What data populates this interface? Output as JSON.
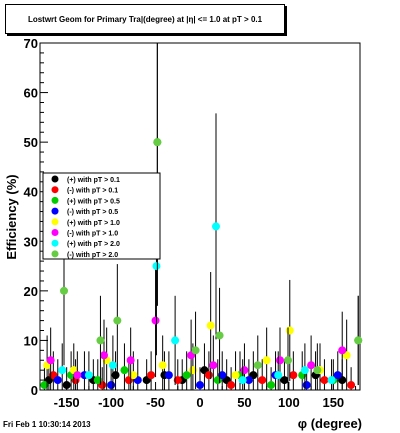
{
  "title": "Lostwrt Geom for Primary Tra|(degree) at |η| <= 1.0 at pT > 0.1",
  "timestamp": "Fri Feb  1 10:30:14 2013",
  "colors": {
    "p01": "#000000",
    "m01": "#ff0000",
    "p05": "#00cc00",
    "m05": "#0000ff",
    "p10": "#ffff00",
    "m10": "#ff00ff",
    "p20": "#00ffff",
    "m20": "#66cc44"
  },
  "chart_data": {
    "type": "scatter",
    "title": "Lostwrt Geom for Primary Tra|(degree) at |η| <= 1.0 at pT > 0.1",
    "xlabel": "φ (degree)",
    "ylabel": "Efficiency (%)",
    "xlim": [
      -180,
      180
    ],
    "ylim": [
      0,
      70
    ],
    "x_ticks": [
      -150,
      -100,
      -50,
      0,
      50,
      100,
      150
    ],
    "x_tick_labels": [
      "-150",
      "-100",
      "-50",
      "0",
      "50",
      "100",
      "150"
    ],
    "y_ticks": [
      0,
      10,
      20,
      30,
      40,
      50,
      60,
      70
    ],
    "y_tick_labels": [
      "0",
      "10",
      "20",
      "30",
      "40",
      "50",
      "60",
      "70"
    ],
    "legend_position": "left-middle",
    "series": [
      {
        "name": "(+) with pT > 0.1",
        "color": "#000000",
        "points": [
          [
            -170,
            2
          ],
          [
            -150,
            1
          ],
          [
            -120,
            2
          ],
          [
            -95,
            3
          ],
          [
            -60,
            2
          ],
          [
            -40,
            3
          ],
          [
            -20,
            2
          ],
          [
            5,
            4
          ],
          [
            30,
            2
          ],
          [
            60,
            3
          ],
          [
            95,
            2
          ],
          [
            130,
            3
          ],
          [
            160,
            2
          ]
        ]
      },
      {
        "name": "(-) with pT > 0.1",
        "color": "#ff0000",
        "points": [
          [
            -165,
            3
          ],
          [
            -140,
            2
          ],
          [
            -110,
            1
          ],
          [
            -80,
            2
          ],
          [
            -55,
            3
          ],
          [
            -25,
            2
          ],
          [
            10,
            3
          ],
          [
            35,
            1
          ],
          [
            70,
            2
          ],
          [
            105,
            3
          ],
          [
            140,
            2
          ],
          [
            170,
            1
          ]
        ]
      },
      {
        "name": "(+) with pT > 0.5",
        "color": "#00cc00",
        "points": [
          [
            -175,
            1
          ],
          [
            -145,
            3
          ],
          [
            -115,
            2
          ],
          [
            -85,
            4
          ],
          [
            -48,
            50
          ],
          [
            -15,
            3
          ],
          [
            20,
            2
          ],
          [
            45,
            3
          ],
          [
            80,
            1
          ],
          [
            115,
            3
          ],
          [
            150,
            2
          ],
          [
            178,
            10
          ]
        ]
      },
      {
        "name": "(-) with pT > 0.5",
        "color": "#0000ff",
        "points": [
          [
            -160,
            2
          ],
          [
            -130,
            3
          ],
          [
            -100,
            1
          ],
          [
            -70,
            2
          ],
          [
            -35,
            3
          ],
          [
            0,
            1
          ],
          [
            25,
            3
          ],
          [
            55,
            2
          ],
          [
            85,
            3
          ],
          [
            120,
            1
          ],
          [
            155,
            3
          ]
        ]
      },
      {
        "name": "(+) with pT > 1.0",
        "color": "#ffff00",
        "points": [
          [
            -172,
            5
          ],
          [
            -142,
            4
          ],
          [
            -105,
            6
          ],
          [
            -75,
            3
          ],
          [
            -42,
            5
          ],
          [
            -8,
            4
          ],
          [
            12,
            13
          ],
          [
            40,
            3
          ],
          [
            75,
            6
          ],
          [
            101,
            12
          ],
          [
            135,
            4
          ],
          [
            165,
            7
          ]
        ]
      },
      {
        "name": "(-) with pT > 1.0",
        "color": "#ff00ff",
        "points": [
          [
            -168,
            6
          ],
          [
            -138,
            3
          ],
          [
            -108,
            7
          ],
          [
            -78,
            6
          ],
          [
            -50,
            14
          ],
          [
            -10,
            7
          ],
          [
            15,
            5
          ],
          [
            50,
            4
          ],
          [
            90,
            6
          ],
          [
            125,
            5
          ],
          [
            160,
            8
          ]
        ]
      },
      {
        "name": "(+) with pT > 2.0",
        "color": "#00ffff",
        "points": [
          [
            -155,
            4
          ],
          [
            -125,
            3
          ],
          [
            -98,
            5
          ],
          [
            -49,
            25
          ],
          [
            -28,
            10
          ],
          [
            18,
            33
          ],
          [
            48,
            2
          ],
          [
            88,
            3
          ],
          [
            118,
            4
          ],
          [
            148,
            2
          ]
        ]
      },
      {
        "name": "(-) with pT > 2.0",
        "color": "#66cc44",
        "points": [
          [
            -153,
            20
          ],
          [
            -112,
            10
          ],
          [
            -93,
            14
          ],
          [
            -48,
            50
          ],
          [
            -5,
            8
          ],
          [
            22,
            11
          ],
          [
            65,
            5
          ],
          [
            99,
            6
          ],
          [
            132,
            4
          ],
          [
            178,
            10
          ]
        ]
      }
    ]
  }
}
